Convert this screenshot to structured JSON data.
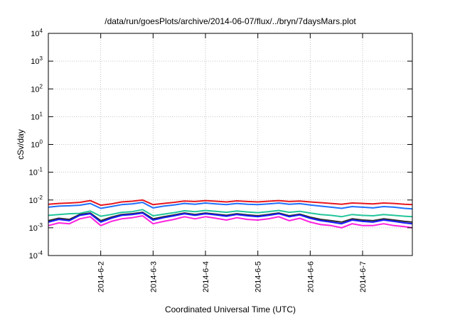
{
  "chart_data": {
    "type": "line",
    "title": "/data/run/goesPlots/archive/2014-06-07/flux/../bryn/7daysMars.plot",
    "xlabel": "Coordinated Universal Time (UTC)",
    "ylabel": "cSv/day",
    "yscale": "log",
    "ylim": [
      0.0001,
      10000
    ],
    "xlim": [
      1.0,
      7.95
    ],
    "x_unit": "day of June 2014",
    "y_ticks": [
      {
        "base": "10",
        "exp": "-4"
      },
      {
        "base": "10",
        "exp": "-3"
      },
      {
        "base": "10",
        "exp": "-2"
      },
      {
        "base": "10",
        "exp": "-1"
      },
      {
        "base": "10",
        "exp": "0"
      },
      {
        "base": "10",
        "exp": "1"
      },
      {
        "base": "10",
        "exp": "2"
      },
      {
        "base": "10",
        "exp": "3"
      },
      {
        "base": "10",
        "exp": "4"
      }
    ],
    "x_ticks": [
      {
        "label": "2014-6-2",
        "value": 2
      },
      {
        "label": "2014-6-3",
        "value": 3
      },
      {
        "label": "2014-6-4",
        "value": 4
      },
      {
        "label": "2014-6-5",
        "value": 5
      },
      {
        "label": "2014-6-6",
        "value": 6
      },
      {
        "label": "2014-6-7",
        "value": 7
      }
    ],
    "grid": true,
    "x": [
      1.0,
      1.2,
      1.4,
      1.6,
      1.8,
      2.0,
      2.2,
      2.4,
      2.6,
      2.8,
      3.0,
      3.2,
      3.4,
      3.6,
      3.8,
      4.0,
      4.2,
      4.4,
      4.6,
      4.8,
      5.0,
      5.2,
      5.4,
      5.6,
      5.8,
      6.0,
      6.2,
      6.4,
      6.6,
      6.8,
      7.0,
      7.2,
      7.4,
      7.6,
      7.8,
      7.95
    ],
    "series": [
      {
        "color": "#e8161f",
        "values": [
          0.007,
          0.0075,
          0.0078,
          0.0082,
          0.0095,
          0.0065,
          0.0072,
          0.0085,
          0.009,
          0.01,
          0.0068,
          0.0075,
          0.0082,
          0.0092,
          0.0088,
          0.0095,
          0.009,
          0.0085,
          0.0093,
          0.0088,
          0.0085,
          0.009,
          0.0095,
          0.0088,
          0.0092,
          0.0085,
          0.008,
          0.0075,
          0.007,
          0.0078,
          0.0075,
          0.0072,
          0.0078,
          0.0075,
          0.007,
          0.0068
        ]
      },
      {
        "color": "#1f6fff",
        "values": [
          0.0055,
          0.006,
          0.0062,
          0.0065,
          0.0075,
          0.005,
          0.0058,
          0.0068,
          0.0072,
          0.0082,
          0.0052,
          0.006,
          0.0066,
          0.0075,
          0.007,
          0.0078,
          0.0072,
          0.0068,
          0.0075,
          0.007,
          0.0068,
          0.0072,
          0.0078,
          0.007,
          0.0074,
          0.0066,
          0.006,
          0.0055,
          0.005,
          0.0058,
          0.0055,
          0.0052,
          0.0058,
          0.0055,
          0.005,
          0.0048
        ]
      },
      {
        "color": "#22c59a",
        "values": [
          0.0028,
          0.003,
          0.0032,
          0.0033,
          0.004,
          0.0026,
          0.003,
          0.0036,
          0.0038,
          0.0045,
          0.0027,
          0.0031,
          0.0035,
          0.0041,
          0.0038,
          0.0042,
          0.0039,
          0.0036,
          0.004,
          0.0037,
          0.0035,
          0.0038,
          0.0042,
          0.0036,
          0.0039,
          0.0034,
          0.003,
          0.0028,
          0.0025,
          0.003,
          0.0028,
          0.0027,
          0.003,
          0.0028,
          0.0026,
          0.0025
        ]
      },
      {
        "color": "#2c2c2c",
        "values": [
          0.0018,
          0.0022,
          0.002,
          0.003,
          0.0034,
          0.0018,
          0.0024,
          0.003,
          0.0032,
          0.0036,
          0.0021,
          0.0025,
          0.0029,
          0.0034,
          0.003,
          0.0034,
          0.0031,
          0.0028,
          0.0032,
          0.0029,
          0.0027,
          0.003,
          0.0034,
          0.0027,
          0.0031,
          0.0024,
          0.002,
          0.0018,
          0.0016,
          0.0021,
          0.0019,
          0.0018,
          0.0021,
          0.0019,
          0.0017,
          0.0016
        ]
      },
      {
        "color": "#1a1aff",
        "values": [
          0.0016,
          0.002,
          0.0018,
          0.0028,
          0.0032,
          0.0016,
          0.0022,
          0.0028,
          0.003,
          0.0034,
          0.0019,
          0.0023,
          0.0027,
          0.0032,
          0.0028,
          0.0032,
          0.0029,
          0.0026,
          0.003,
          0.0027,
          0.0025,
          0.0028,
          0.0032,
          0.0025,
          0.0029,
          0.0022,
          0.0018,
          0.0016,
          0.0014,
          0.0019,
          0.0017,
          0.0016,
          0.0019,
          0.0017,
          0.0015,
          0.0014
        ]
      },
      {
        "color": "#ff22dd",
        "values": [
          0.0012,
          0.0015,
          0.0014,
          0.0021,
          0.0025,
          0.0012,
          0.0017,
          0.0021,
          0.0023,
          0.0027,
          0.0014,
          0.0017,
          0.002,
          0.0025,
          0.0021,
          0.0025,
          0.0022,
          0.0019,
          0.0023,
          0.002,
          0.0019,
          0.0021,
          0.0025,
          0.0018,
          0.0022,
          0.0016,
          0.0013,
          0.0012,
          0.001,
          0.0014,
          0.0012,
          0.0012,
          0.0014,
          0.0012,
          0.0011,
          0.001
        ]
      }
    ]
  }
}
